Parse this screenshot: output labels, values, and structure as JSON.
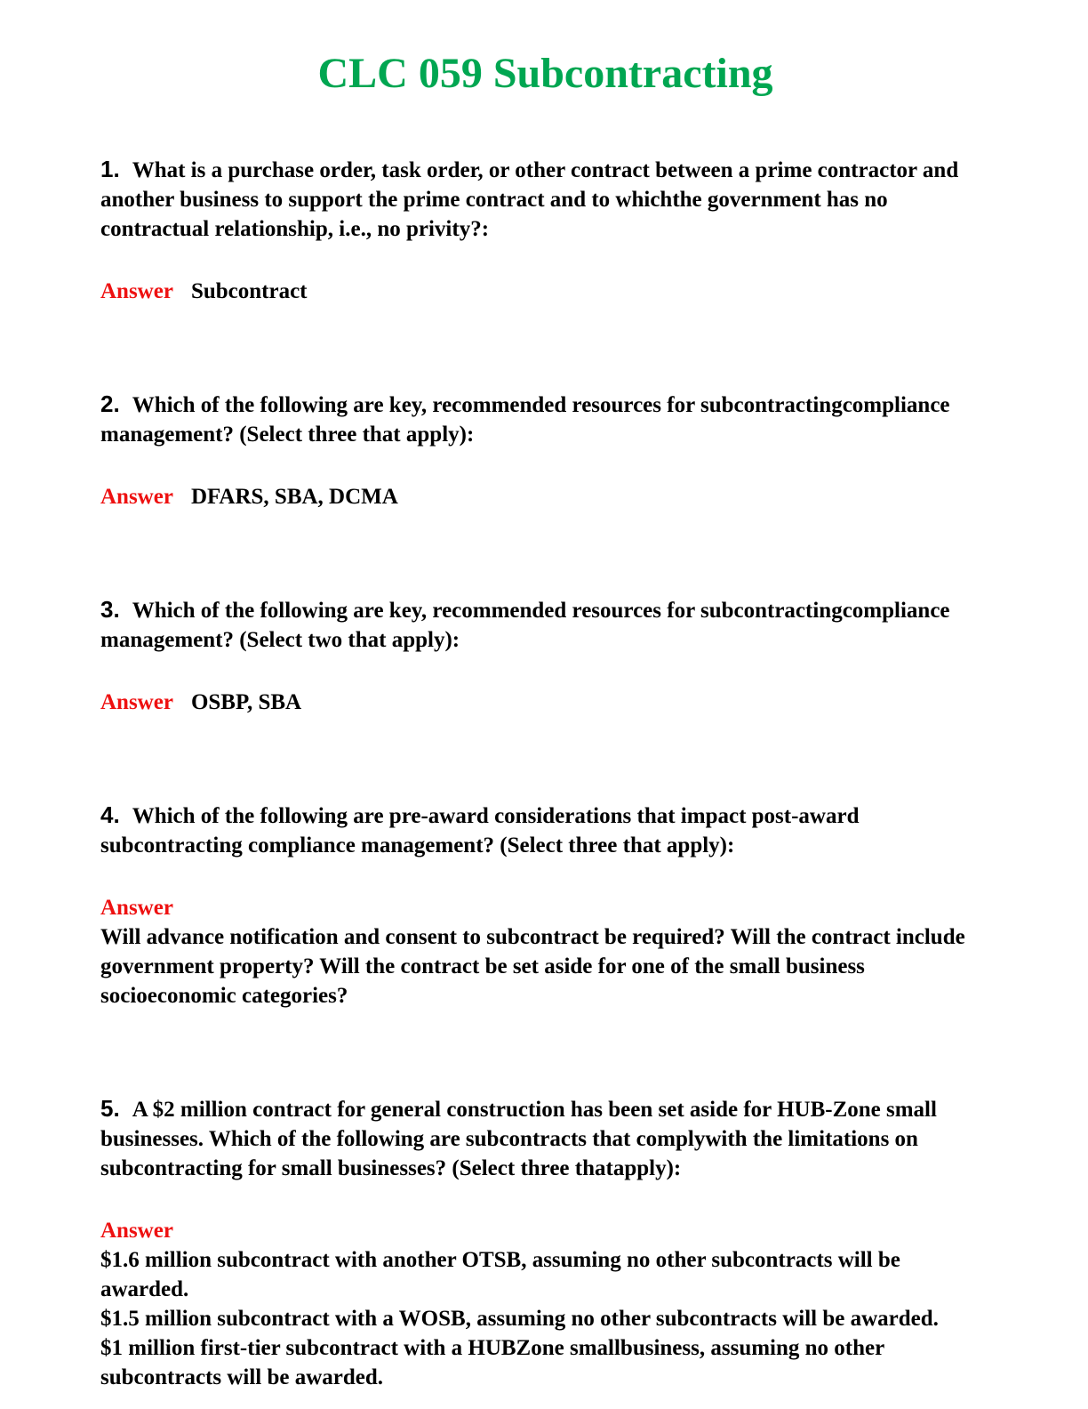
{
  "page_title": "CLC 059 Subcontracting",
  "answer_label": "Answer",
  "colors": {
    "title_green": "#00A651",
    "answer_red": "#EE1111"
  },
  "questions": [
    {
      "number": "1.",
      "text": "What is a purchase order, task order, or other contract between a prime contractor and another business to support the prime contract and to whichthe government has no contractual relationship, i.e., no privity?:",
      "answer_inline": "Subcontract"
    },
    {
      "number": "2.",
      "text": "Which of the following are key, recommended resources for subcontractingcompliance management? (Select three that apply):",
      "answer_inline": "DFARS, SBA, DCMA"
    },
    {
      "number": "3.",
      "text": "Which of the following are key, recommended resources for subcontractingcompliance management? (Select two that apply):",
      "answer_inline": "OSBP, SBA"
    },
    {
      "number": "4.",
      "text": "Which of the following are pre-award considerations that impact post-award subcontracting compliance management? (Select three that apply):",
      "answer_lines": [
        "Will advance notification and consent to subcontract be required? Will the contract include government property? Will the contract be set aside for one of the small business socioeconomic categories?"
      ]
    },
    {
      "number": "5.",
      "text": "A $2 million contract for general construction has been set aside for HUB-Zone small businesses. Which of the following are subcontracts that complywith the limitations on subcontracting for small businesses? (Select three thatapply):",
      "answer_lines": [
        "$1.6 million subcontract with another OTSB, assuming no other subcontracts will be awarded.",
        "$1.5 million subcontract with a WOSB, assuming no other subcontracts will be awarded.",
        "$1 million first-tier subcontract with a HUBZone smallbusiness, assuming no other subcontracts will be awarded."
      ]
    }
  ]
}
